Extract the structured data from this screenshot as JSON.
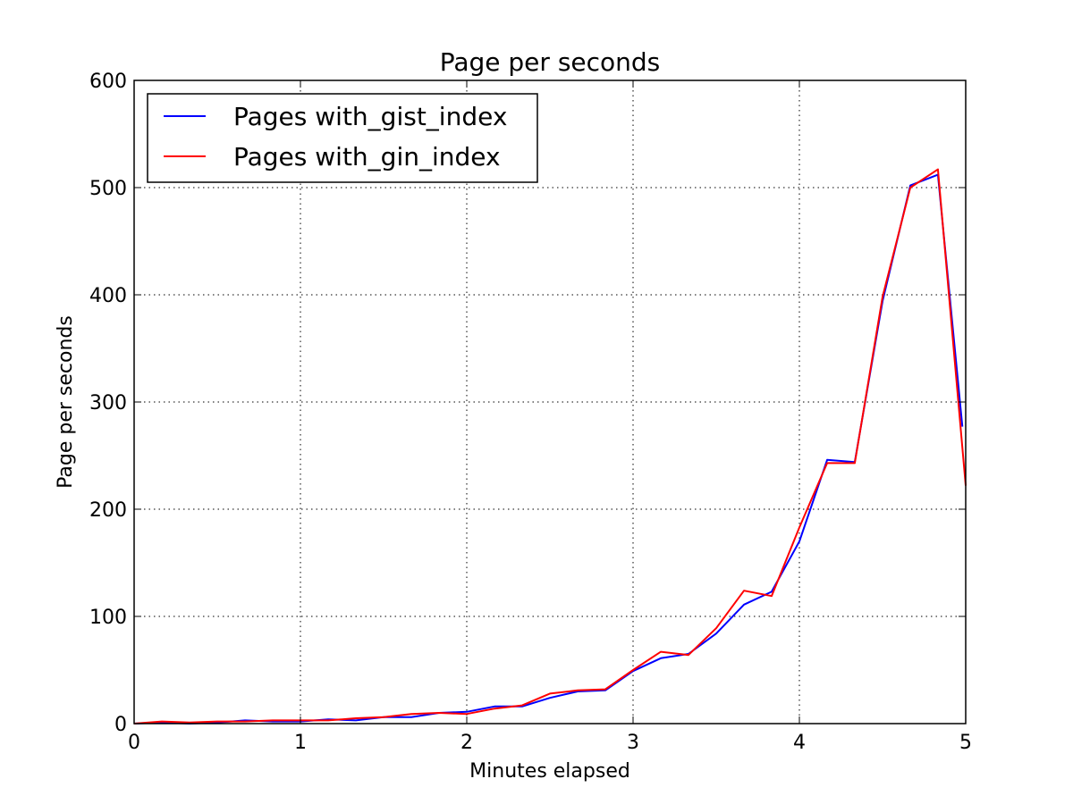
{
  "chart_data": {
    "type": "line",
    "title": "Page per seconds",
    "xlabel": "Minutes elapsed",
    "ylabel": "Page per seconds",
    "xlim": [
      0,
      5
    ],
    "ylim": [
      0,
      600
    ],
    "xticks": [
      0,
      1,
      2,
      3,
      4,
      5
    ],
    "yticks": [
      0,
      100,
      200,
      300,
      400,
      500,
      600
    ],
    "grid": true,
    "legend_position": "top-left",
    "series": [
      {
        "name": "Pages with_gist_index",
        "color": "#0000ff",
        "x": [
          0,
          0.167,
          0.333,
          0.5,
          0.667,
          0.833,
          1,
          1.167,
          1.333,
          1.5,
          1.667,
          1.833,
          2,
          2.167,
          2.333,
          2.5,
          2.667,
          2.833,
          3,
          3.167,
          3.333,
          3.5,
          3.667,
          3.833,
          4,
          4.167,
          4.333,
          4.5,
          4.667,
          4.833,
          4.98
        ],
        "values": [
          0,
          1,
          0,
          1,
          3,
          2,
          2,
          4,
          3,
          6,
          6,
          10,
          11,
          16,
          16,
          24,
          30,
          31,
          49,
          61,
          65,
          84,
          111,
          123,
          170,
          246,
          244,
          394,
          502,
          512,
          277
        ]
      },
      {
        "name": "Pages with_gin_index",
        "color": "#ff0000",
        "x": [
          0,
          0.167,
          0.333,
          0.5,
          0.667,
          0.833,
          1,
          1.167,
          1.333,
          1.5,
          1.667,
          1.833,
          2,
          2.167,
          2.333,
          2.5,
          2.667,
          2.833,
          3,
          3.167,
          3.333,
          3.5,
          3.667,
          3.833,
          4,
          4.167,
          4.333,
          4.5,
          4.667,
          4.833,
          5
        ],
        "values": [
          0,
          2,
          1,
          2,
          2,
          3,
          3,
          3,
          5,
          6,
          9,
          10,
          9,
          14,
          17,
          28,
          31,
          32,
          50,
          67,
          64,
          89,
          124,
          119,
          183,
          243,
          243,
          398,
          500,
          517,
          222
        ]
      }
    ]
  }
}
